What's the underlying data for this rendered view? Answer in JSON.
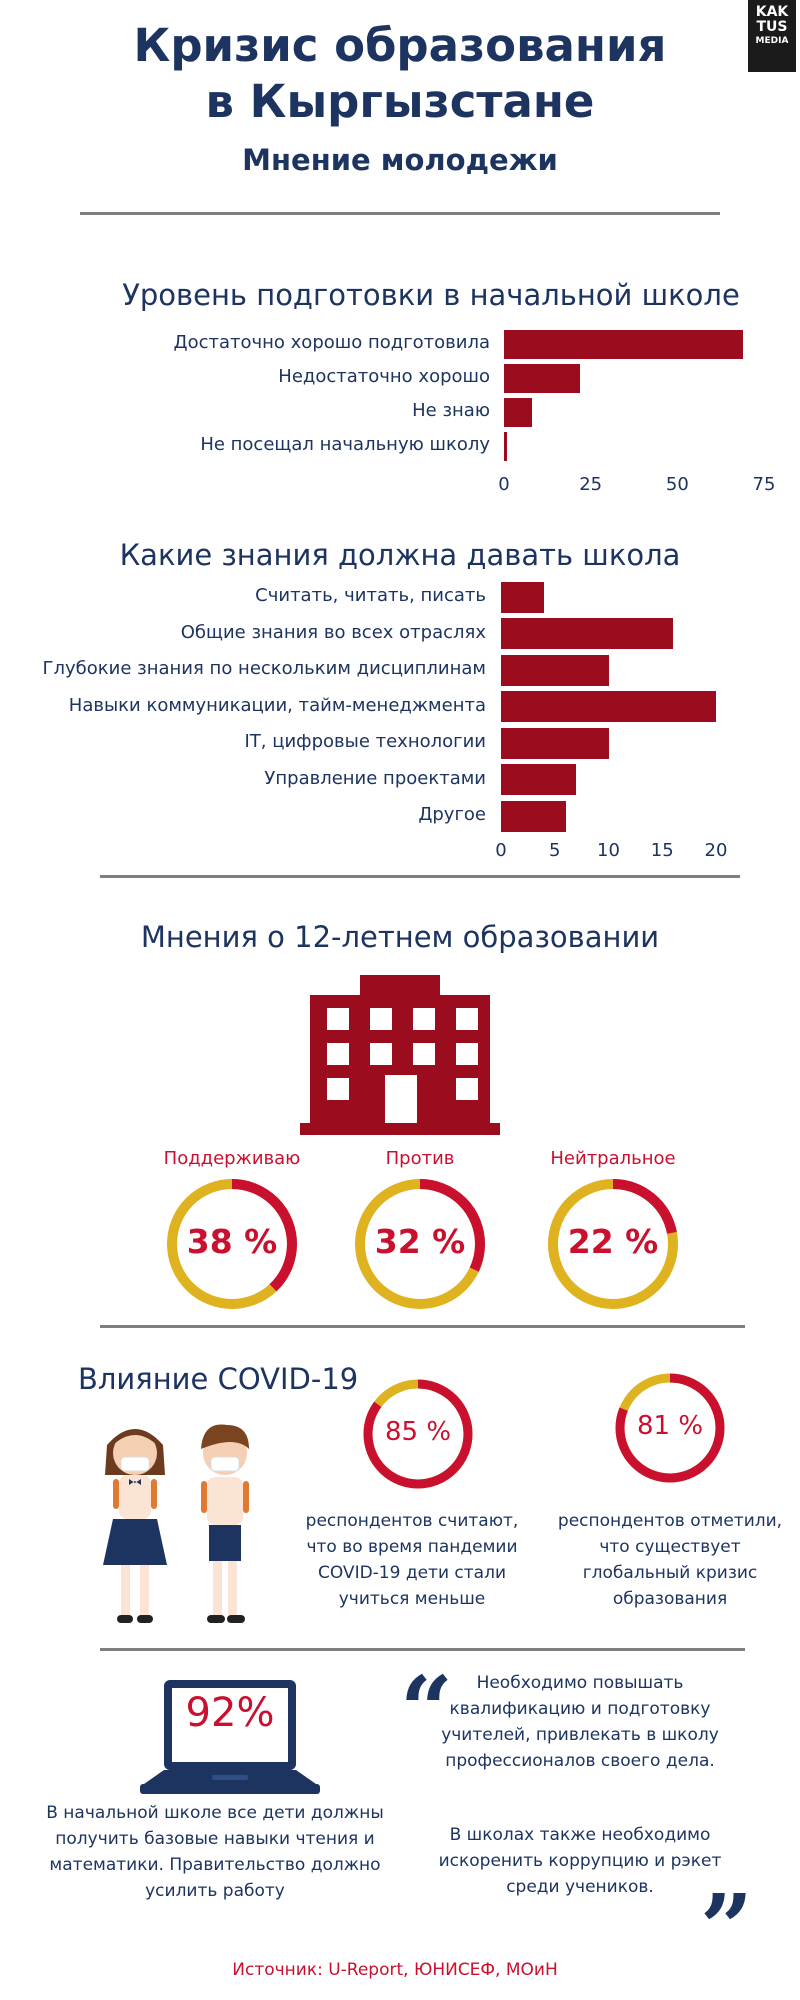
{
  "header": {
    "title_line1": "Кризис образования",
    "title_line2": "в Кыргызстане",
    "subtitle": "Мнение молодежи",
    "logo_line1": "KAK",
    "logo_line2": "TUS",
    "logo_line3": "MEDIA"
  },
  "chart_data": [
    {
      "type": "bar",
      "orientation": "horizontal",
      "title": "Уровень подготовки в начальной школе",
      "categories": [
        "Достаточно хорошо подготовила",
        "Недостаточно хорошо",
        "Не знаю",
        "Не посещал начальную школу"
      ],
      "values": [
        69,
        22,
        8,
        1
      ],
      "xticks": [
        0,
        25,
        50,
        75
      ],
      "xlim": [
        0,
        75
      ],
      "color": "#9b0c1f"
    },
    {
      "type": "bar",
      "orientation": "horizontal",
      "title": "Какие знания должна давать школа",
      "categories": [
        "Считать, читать, писать",
        "Общие знания во всех отраслях",
        "Глубокие знания по нескольким дисциплинам",
        "Навыки коммуникации, тайм-менеджмента",
        "IT, цифровые технологии",
        "Управление проектами",
        "Другое"
      ],
      "values": [
        4,
        16,
        10,
        20,
        10,
        7,
        6
      ],
      "xticks": [
        0,
        5,
        10,
        15,
        20
      ],
      "xlim": [
        0,
        20
      ],
      "color": "#9b0c1f"
    }
  ],
  "twelve_year": {
    "title": "Мнения о 12-летнем образовании",
    "building_icon": "school-building-icon",
    "items": [
      {
        "label": "Поддерживаю",
        "value_text": "38 %",
        "value": 38
      },
      {
        "label": "Против",
        "value_text": "32 %",
        "value": 32
      },
      {
        "label": "Нейтральное",
        "value_text": "22 %",
        "value": 22
      }
    ],
    "ring_colors": {
      "filled": "#c9102e",
      "rest": "#dfb21f"
    }
  },
  "covid": {
    "title": "Влияние COVID-19",
    "illustration_icon": "schoolchildren-masks-icon",
    "stats": [
      {
        "value_text": "85 %",
        "value": 85,
        "text": "респондентов считают, что во время пандемии COVID-19 дети стали учиться меньше"
      },
      {
        "value_text": "81 %",
        "value": 81,
        "text": "респондентов отметили, что существует глобальный кризис образования"
      }
    ]
  },
  "bottom": {
    "laptop_value": "92%",
    "laptop_icon": "laptop-icon",
    "laptop_text": "В начальной школе все дети должны получить базовые навыки чтения и математики. Правительство должно усилить работу",
    "quote_open": "“",
    "quote_close": "”",
    "quote_text_1": "Необходимо повышать квалификацию и подготовку учителей, привлекать в школу профессионалов своего дела.",
    "quote_text_2": "В школах также необходимо искоренить коррупцию и рэкет среди учеников."
  },
  "source": "Источник: U-Report, ЮНИСЕФ, МОиН",
  "colors": {
    "navy": "#1d3461",
    "bar": "#9b0c1f",
    "accent_red": "#c9102e",
    "accent_yellow": "#dfb21f"
  }
}
